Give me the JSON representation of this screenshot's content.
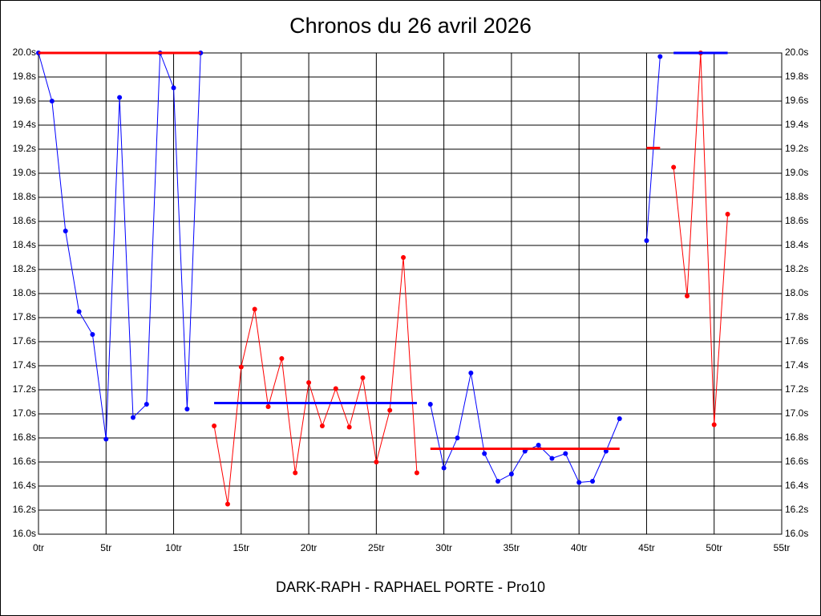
{
  "chart_data": {
    "type": "line",
    "title": "Chronos du 26 avril 2026",
    "x_label": "DARK-RAPH - RAPHAEL PORTE - Pro10",
    "grid": true,
    "xlim": [
      0,
      55
    ],
    "xticks": [
      {
        "value": 0,
        "label": "0tr"
      },
      {
        "value": 5,
        "label": "5tr"
      },
      {
        "value": 10,
        "label": "10tr"
      },
      {
        "value": 15,
        "label": "15tr"
      },
      {
        "value": 20,
        "label": "20tr"
      },
      {
        "value": 25,
        "label": "25tr"
      },
      {
        "value": 30,
        "label": "30tr"
      },
      {
        "value": 35,
        "label": "35tr"
      },
      {
        "value": 40,
        "label": "40tr"
      },
      {
        "value": 45,
        "label": "45tr"
      },
      {
        "value": 50,
        "label": "50tr"
      },
      {
        "value": 55,
        "label": "55tr"
      }
    ],
    "ylim": [
      16,
      20
    ],
    "yticks": [
      {
        "value": 16,
        "label": "16.0s"
      },
      {
        "value": 16.2,
        "label": "16.2s"
      },
      {
        "value": 16.4,
        "label": "16.4s"
      },
      {
        "value": 16.6,
        "label": "16.6s"
      },
      {
        "value": 16.8,
        "label": "16.8s"
      },
      {
        "value": 17,
        "label": "17.0s"
      },
      {
        "value": 17.2,
        "label": "17.2s"
      },
      {
        "value": 17.4,
        "label": "17.4s"
      },
      {
        "value": 17.6,
        "label": "17.6s"
      },
      {
        "value": 17.8,
        "label": "17.8s"
      },
      {
        "value": 18,
        "label": "18.0s"
      },
      {
        "value": 18.2,
        "label": "18.2s"
      },
      {
        "value": 18.4,
        "label": "18.4s"
      },
      {
        "value": 18.6,
        "label": "18.6s"
      },
      {
        "value": 18.8,
        "label": "18.8s"
      },
      {
        "value": 19,
        "label": "19.0s"
      },
      {
        "value": 19.2,
        "label": "19.2s"
      },
      {
        "value": 19.4,
        "label": "19.4s"
      },
      {
        "value": 19.6,
        "label": "19.6s"
      },
      {
        "value": 19.8,
        "label": "19.8s"
      },
      {
        "value": 20,
        "label": "20.0s"
      }
    ],
    "series": [
      {
        "color": "#0000ff",
        "x": [
          0,
          1,
          2,
          3,
          4,
          5,
          6,
          7,
          8,
          9,
          10,
          11,
          12
        ],
        "values": [
          20.0,
          19.6,
          18.52,
          17.85,
          17.66,
          16.79,
          19.63,
          16.97,
          17.08,
          20.0,
          19.71,
          17.04,
          20.0
        ]
      },
      {
        "color": "#ff0000",
        "x": [
          13,
          14,
          15,
          16,
          17,
          18,
          19,
          20,
          21,
          22,
          23,
          24,
          25,
          26,
          27,
          28
        ],
        "values": [
          16.9,
          16.25,
          17.39,
          17.87,
          17.06,
          17.46,
          16.51,
          17.26,
          16.9,
          17.21,
          16.89,
          17.3,
          16.6,
          17.03,
          18.3,
          16.51
        ]
      },
      {
        "color": "#0000ff",
        "x": [
          29,
          30,
          31,
          32,
          33,
          34,
          35,
          36,
          37,
          38,
          39,
          40,
          41,
          42,
          43
        ],
        "values": [
          17.08,
          16.55,
          16.8,
          17.34,
          16.67,
          16.44,
          16.5,
          16.69,
          16.74,
          16.63,
          16.67,
          16.43,
          16.44,
          16.69,
          16.96
        ]
      },
      {
        "color": "#0000ff",
        "x": [
          45,
          46
        ],
        "values": [
          18.44,
          19.97
        ]
      },
      {
        "color": "#ff0000",
        "x": [
          47,
          48,
          49,
          50,
          51
        ],
        "values": [
          19.05,
          17.98,
          20.0,
          16.91,
          18.66
        ]
      }
    ],
    "averages": [
      {
        "color": "#ff0000",
        "x": [
          0,
          12
        ],
        "value": 20.0
      },
      {
        "color": "#0000ff",
        "x": [
          13,
          28
        ],
        "value": 17.09
      },
      {
        "color": "#ff0000",
        "x": [
          29,
          43
        ],
        "value": 16.71
      },
      {
        "color": "#ff0000",
        "x": [
          45,
          46
        ],
        "value": 19.21
      },
      {
        "color": "#0000ff",
        "x": [
          47,
          51
        ],
        "value": 20.0
      }
    ]
  }
}
